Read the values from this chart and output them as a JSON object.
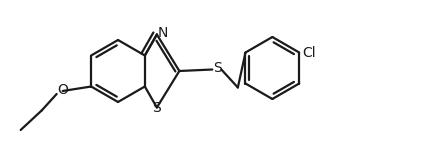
{
  "background_color": "#ffffff",
  "line_color": "#1a1a1a",
  "line_width": 1.6,
  "figsize": [
    4.31,
    1.47
  ],
  "dpi": 100,
  "atoms": {
    "N_label": "N",
    "S_thiazole_label": "S",
    "S_linker_label": "S",
    "O_label": "O",
    "Cl_label": "Cl"
  }
}
